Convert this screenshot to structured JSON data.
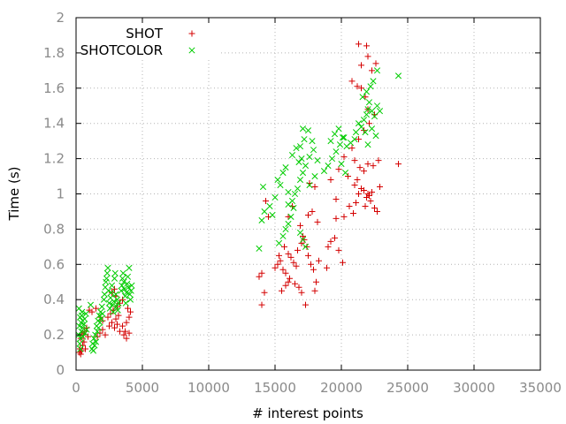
{
  "chart_data": {
    "type": "scatter",
    "title": "",
    "xlabel": "# interest points",
    "ylabel": "Time (s)",
    "xlim": [
      0,
      35000
    ],
    "ylim": [
      0,
      2
    ],
    "xticks": [
      "0",
      "5000",
      "10000",
      "15000",
      "20000",
      "25000",
      "30000",
      "35000"
    ],
    "yticks": [
      "0",
      "0.2",
      "0.4",
      "0.6",
      "0.8",
      "1",
      "1.2",
      "1.4",
      "1.6",
      "1.8",
      "2"
    ],
    "grid": true,
    "legend_position": "top-left",
    "series": [
      {
        "name": "SHOT",
        "color": "#d40000",
        "marker": "plus",
        "points": [
          [
            250,
            0.1
          ],
          [
            300,
            0.12
          ],
          [
            350,
            0.09
          ],
          [
            420,
            0.11
          ],
          [
            500,
            0.14
          ],
          [
            600,
            0.16
          ],
          [
            700,
            0.12
          ],
          [
            350,
            0.18
          ],
          [
            450,
            0.21
          ],
          [
            550,
            0.2
          ],
          [
            650,
            0.22
          ],
          [
            800,
            0.24
          ],
          [
            900,
            0.19
          ],
          [
            1000,
            0.34
          ],
          [
            1200,
            0.33
          ],
          [
            1500,
            0.35
          ],
          [
            1800,
            0.3
          ],
          [
            2000,
            0.28
          ],
          [
            1600,
            0.19
          ],
          [
            1800,
            0.21
          ],
          [
            2000,
            0.23
          ],
          [
            2200,
            0.2
          ],
          [
            2500,
            0.25
          ],
          [
            2700,
            0.27
          ],
          [
            2400,
            0.3
          ],
          [
            2600,
            0.32
          ],
          [
            2800,
            0.34
          ],
          [
            3000,
            0.29
          ],
          [
            3200,
            0.31
          ],
          [
            2900,
            0.24
          ],
          [
            3300,
            0.38
          ],
          [
            3500,
            0.4
          ],
          [
            3100,
            0.36
          ],
          [
            2700,
            0.44
          ],
          [
            2900,
            0.46
          ],
          [
            3000,
            0.42
          ],
          [
            3600,
            0.2
          ],
          [
            3700,
            0.22
          ],
          [
            3800,
            0.18
          ],
          [
            4000,
            0.21
          ],
          [
            4100,
            0.33
          ],
          [
            3900,
            0.35
          ],
          [
            4000,
            0.3
          ],
          [
            3800,
            0.27
          ],
          [
            3500,
            0.25
          ],
          [
            3300,
            0.22
          ],
          [
            3100,
            0.26
          ],
          [
            14000,
            0.37
          ],
          [
            14200,
            0.44
          ],
          [
            13800,
            0.53
          ],
          [
            14000,
            0.55
          ],
          [
            14500,
            0.87
          ],
          [
            14300,
            0.96
          ],
          [
            15000,
            0.58
          ],
          [
            15200,
            0.6
          ],
          [
            15400,
            0.62
          ],
          [
            15600,
            0.57
          ],
          [
            15800,
            0.55
          ],
          [
            16000,
            0.5
          ],
          [
            15300,
            0.65
          ],
          [
            15700,
            0.7
          ],
          [
            16000,
            0.66
          ],
          [
            16200,
            0.64
          ],
          [
            16400,
            0.61
          ],
          [
            16600,
            0.59
          ],
          [
            15500,
            0.45
          ],
          [
            15800,
            0.48
          ],
          [
            16100,
            0.52
          ],
          [
            16500,
            0.49
          ],
          [
            16800,
            0.47
          ],
          [
            17000,
            0.44
          ],
          [
            16700,
            0.68
          ],
          [
            17000,
            0.72
          ],
          [
            17200,
            0.74
          ],
          [
            17400,
            0.7
          ],
          [
            17100,
            0.76
          ],
          [
            16900,
            0.82
          ],
          [
            17500,
            0.65
          ],
          [
            17700,
            0.6
          ],
          [
            17900,
            0.57
          ],
          [
            18100,
            0.5
          ],
          [
            18300,
            0.62
          ],
          [
            17300,
            0.37
          ],
          [
            16000,
            0.87
          ],
          [
            16300,
            0.93
          ],
          [
            17500,
            0.88
          ],
          [
            17800,
            0.9
          ],
          [
            18200,
            0.84
          ],
          [
            18000,
            0.45
          ],
          [
            19000,
            0.7
          ],
          [
            19200,
            0.73
          ],
          [
            19500,
            0.75
          ],
          [
            19800,
            0.68
          ],
          [
            20100,
            0.61
          ],
          [
            18900,
            0.58
          ],
          [
            19600,
            0.86
          ],
          [
            19600,
            0.97
          ],
          [
            20200,
            0.87
          ],
          [
            20600,
            0.93
          ],
          [
            20900,
            0.89
          ],
          [
            21100,
            0.95
          ],
          [
            21300,
            1.0
          ],
          [
            21500,
            1.03
          ],
          [
            21700,
            1.02
          ],
          [
            21900,
            0.98
          ],
          [
            22100,
            0.99
          ],
          [
            22300,
            1.01
          ],
          [
            21000,
            1.05
          ],
          [
            21200,
            1.08
          ],
          [
            21800,
            0.93
          ],
          [
            22000,
            1.0
          ],
          [
            22200,
            0.96
          ],
          [
            22500,
            0.92
          ],
          [
            22700,
            0.9
          ],
          [
            22900,
            1.04
          ],
          [
            20500,
            1.1
          ],
          [
            21000,
            1.19
          ],
          [
            21400,
            1.15
          ],
          [
            21700,
            1.13
          ],
          [
            22000,
            1.17
          ],
          [
            22400,
            1.16
          ],
          [
            22800,
            1.19
          ],
          [
            20200,
            1.21
          ],
          [
            20800,
            1.26
          ],
          [
            21300,
            1.31
          ],
          [
            21700,
            1.36
          ],
          [
            22100,
            1.4
          ],
          [
            22500,
            1.45
          ],
          [
            21500,
            1.6
          ],
          [
            21800,
            1.55
          ],
          [
            22000,
            1.48
          ],
          [
            20800,
            1.64
          ],
          [
            21200,
            1.61
          ],
          [
            21500,
            1.73
          ],
          [
            22000,
            1.78
          ],
          [
            22600,
            1.74
          ],
          [
            22300,
            1.7
          ],
          [
            21300,
            1.85
          ],
          [
            21900,
            1.84
          ],
          [
            18000,
            1.04
          ],
          [
            17600,
            1.06
          ],
          [
            19200,
            1.08
          ],
          [
            19800,
            1.14
          ],
          [
            24300,
            1.17
          ]
        ]
      },
      {
        "name": "SHOTCOLOR",
        "color": "#00cc00",
        "marker": "cross",
        "points": [
          [
            200,
            0.2
          ],
          [
            250,
            0.25
          ],
          [
            300,
            0.3
          ],
          [
            350,
            0.18
          ],
          [
            400,
            0.22
          ],
          [
            450,
            0.33
          ],
          [
            500,
            0.28
          ],
          [
            220,
            0.35
          ],
          [
            280,
            0.15
          ],
          [
            330,
            0.12
          ],
          [
            380,
            0.27
          ],
          [
            430,
            0.31
          ],
          [
            480,
            0.24
          ],
          [
            520,
            0.19
          ],
          [
            600,
            0.26
          ],
          [
            650,
            0.29
          ],
          [
            700,
            0.21
          ],
          [
            750,
            0.32
          ],
          [
            800,
            0.23
          ],
          [
            1100,
            0.37
          ],
          [
            1200,
            0.12
          ],
          [
            1250,
            0.15
          ],
          [
            1300,
            0.11
          ],
          [
            1350,
            0.18
          ],
          [
            1400,
            0.14
          ],
          [
            1450,
            0.2
          ],
          [
            1500,
            0.16
          ],
          [
            1550,
            0.25
          ],
          [
            1600,
            0.22
          ],
          [
            1650,
            0.28
          ],
          [
            1700,
            0.24
          ],
          [
            1750,
            0.31
          ],
          [
            1800,
            0.27
          ],
          [
            1850,
            0.33
          ],
          [
            1900,
            0.29
          ],
          [
            1950,
            0.36
          ],
          [
            2000,
            0.32
          ],
          [
            2100,
            0.4
          ],
          [
            2150,
            0.43
          ],
          [
            2200,
            0.47
          ],
          [
            2250,
            0.5
          ],
          [
            2300,
            0.52
          ],
          [
            2350,
            0.55
          ],
          [
            2400,
            0.58
          ],
          [
            2450,
            0.45
          ],
          [
            2500,
            0.38
          ],
          [
            2550,
            0.35
          ],
          [
            2600,
            0.41
          ],
          [
            2650,
            0.44
          ],
          [
            2700,
            0.48
          ],
          [
            2750,
            0.37
          ],
          [
            2800,
            0.33
          ],
          [
            2850,
            0.39
          ],
          [
            2900,
            0.52
          ],
          [
            2950,
            0.55
          ],
          [
            3000,
            0.43
          ],
          [
            3050,
            0.36
          ],
          [
            3100,
            0.4
          ],
          [
            3150,
            0.34
          ],
          [
            3200,
            0.38
          ],
          [
            3400,
            0.45
          ],
          [
            3450,
            0.48
          ],
          [
            3500,
            0.52
          ],
          [
            3550,
            0.55
          ],
          [
            3600,
            0.5
          ],
          [
            3650,
            0.46
          ],
          [
            3700,
            0.42
          ],
          [
            3750,
            0.38
          ],
          [
            3800,
            0.44
          ],
          [
            3850,
            0.49
          ],
          [
            3900,
            0.53
          ],
          [
            3950,
            0.47
          ],
          [
            4000,
            0.58
          ],
          [
            4050,
            0.43
          ],
          [
            4100,
            0.4
          ],
          [
            4150,
            0.45
          ],
          [
            4200,
            0.48
          ],
          [
            13800,
            0.69
          ],
          [
            14000,
            0.85
          ],
          [
            14200,
            0.9
          ],
          [
            14100,
            1.04
          ],
          [
            14600,
            0.93
          ],
          [
            14800,
            0.88
          ],
          [
            15000,
            0.98
          ],
          [
            15200,
            1.08
          ],
          [
            15400,
            1.05
          ],
          [
            15600,
            1.12
          ],
          [
            15800,
            1.15
          ],
          [
            16000,
            1.01
          ],
          [
            15300,
            0.72
          ],
          [
            15600,
            0.76
          ],
          [
            15800,
            0.8
          ],
          [
            16000,
            0.83
          ],
          [
            16200,
            0.87
          ],
          [
            16400,
            0.92
          ],
          [
            16000,
            0.94
          ],
          [
            16300,
            0.96
          ],
          [
            16500,
            1.0
          ],
          [
            16700,
            1.03
          ],
          [
            16900,
            1.08
          ],
          [
            17100,
            1.12
          ],
          [
            16300,
            1.22
          ],
          [
            16600,
            1.26
          ],
          [
            16900,
            1.27
          ],
          [
            17200,
            1.31
          ],
          [
            17500,
            1.36
          ],
          [
            17800,
            1.3
          ],
          [
            16800,
            1.18
          ],
          [
            17000,
            1.2
          ],
          [
            17300,
            1.16
          ],
          [
            17600,
            1.21
          ],
          [
            17900,
            1.25
          ],
          [
            18200,
            1.19
          ],
          [
            16900,
            0.78
          ],
          [
            17100,
            0.74
          ],
          [
            17300,
            0.7
          ],
          [
            17100,
            1.37
          ],
          [
            17600,
            1.05
          ],
          [
            18000,
            1.1
          ],
          [
            18700,
            1.13
          ],
          [
            19000,
            1.16
          ],
          [
            19300,
            1.2
          ],
          [
            19600,
            1.24
          ],
          [
            19900,
            1.28
          ],
          [
            20200,
            1.32
          ],
          [
            19200,
            1.3
          ],
          [
            19500,
            1.34
          ],
          [
            19800,
            1.37
          ],
          [
            20100,
            1.32
          ],
          [
            20400,
            1.27
          ],
          [
            20700,
            1.29
          ],
          [
            21000,
            1.31
          ],
          [
            21100,
            1.35
          ],
          [
            21300,
            1.4
          ],
          [
            21500,
            1.38
          ],
          [
            21700,
            1.42
          ],
          [
            21900,
            1.45
          ],
          [
            22000,
            1.48
          ],
          [
            22100,
            1.52
          ],
          [
            22300,
            1.47
          ],
          [
            22500,
            1.44
          ],
          [
            22700,
            1.5
          ],
          [
            22900,
            1.47
          ],
          [
            21600,
            1.55
          ],
          [
            21900,
            1.58
          ],
          [
            22200,
            1.61
          ],
          [
            22400,
            1.64
          ],
          [
            22700,
            1.7
          ],
          [
            21800,
            1.35
          ],
          [
            22300,
            1.37
          ],
          [
            22600,
            1.33
          ],
          [
            22000,
            1.28
          ],
          [
            20000,
            1.17
          ],
          [
            20300,
            1.12
          ],
          [
            24300,
            1.67
          ]
        ]
      }
    ]
  }
}
